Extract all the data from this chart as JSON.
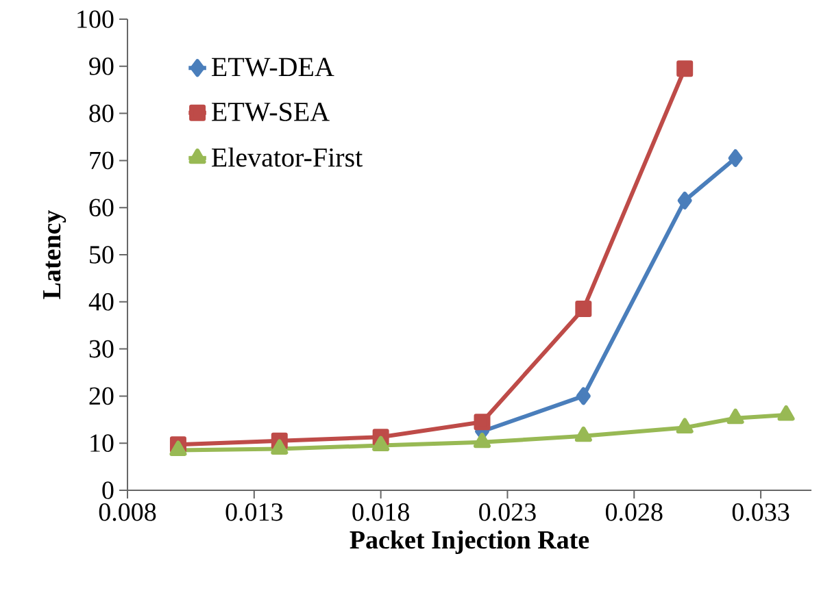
{
  "chart_data": {
    "type": "line",
    "xlabel": "Packet Injection Rate",
    "ylabel": "Latency",
    "x": [
      0.01,
      0.014,
      0.018,
      0.022,
      0.026,
      0.03,
      0.032,
      0.034
    ],
    "series": [
      {
        "name": "ETW-DEA",
        "color": "#4a7ebb",
        "marker": "diamond",
        "values": [
          null,
          null,
          null,
          12.5,
          20,
          61.5,
          70.5,
          null
        ]
      },
      {
        "name": "ETW-SEA",
        "color": "#be4b48",
        "marker": "square",
        "values": [
          9.7,
          10.5,
          11.3,
          14.5,
          38.5,
          89.5,
          null,
          null
        ]
      },
      {
        "name": "Elevator-First",
        "color": "#98b954",
        "marker": "triangle",
        "values": [
          8.5,
          8.8,
          9.5,
          10.2,
          11.5,
          13.3,
          15.3,
          16
        ]
      }
    ],
    "xlim": [
      0.008,
      0.035
    ],
    "ylim": [
      0,
      100
    ],
    "xticks": [
      0.008,
      0.013,
      0.018,
      0.023,
      0.028,
      0.033
    ],
    "yticks": [
      0,
      10,
      20,
      30,
      40,
      50,
      60,
      70,
      80,
      90,
      100
    ],
    "grid": false,
    "legend": "top left",
    "line_style": "solid"
  }
}
